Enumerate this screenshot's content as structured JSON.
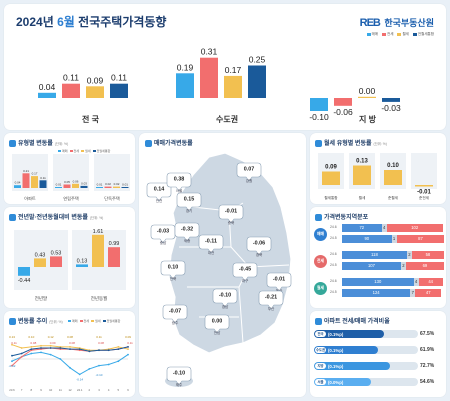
{
  "header": {
    "year": "2024년",
    "month": "6월",
    "title": "전국주택가격동향",
    "logo_mark": "REB",
    "logo_text": "한국부동산원"
  },
  "top": {
    "legend": [
      "매매",
      "전세",
      "월세",
      "전월세통합"
    ],
    "groups": [
      {
        "name": "전 국"
      },
      {
        "name": "수도권"
      },
      {
        "name": "지 방"
      }
    ],
    "colors": [
      "#37a9e8",
      "#f26e6e",
      "#f2c050",
      "#1a5a9a"
    ]
  },
  "type_panel": {
    "title": "유형별 변동률",
    "unit": "(단위: %)",
    "groups": [
      "아파트",
      "연립주택",
      "단독주택"
    ],
    "legend": [
      "매매",
      "전세",
      "월세",
      "전월세통합"
    ],
    "values": [
      [
        "0.04",
        "0.21",
        "0.17",
        "0.11"
      ],
      [
        "0.01",
        "0.05",
        "0.06",
        "0.03"
      ],
      [
        "0.01",
        "0.02",
        "0.02",
        "0.01"
      ]
    ]
  },
  "compare_panel": {
    "title": "전년말·전년동월대비 변동률",
    "unit": "(단위: %)",
    "groups": [
      "전년말",
      "전년동월"
    ],
    "values": [
      [
        "-0.44",
        "0.43",
        "0.53"
      ],
      [
        "0.13",
        "1.61",
        "0.99"
      ]
    ]
  },
  "trend_panel": {
    "title": "변동률 추이",
    "unit": "(단위: %)",
    "legend": [
      "매매",
      "전세",
      "월세",
      "전월세통합"
    ],
    "months": [
      "23.6",
      "7",
      "8",
      "9",
      "10",
      "11",
      "12",
      "24.1",
      "2",
      "3",
      "4",
      "5",
      "6"
    ],
    "labels": {
      "jeonse": [
        "0.11",
        "0.08",
        "0.09",
        "0.08",
        "0.08",
        "0.11"
      ],
      "wolse": [
        "0.13",
        "0.10",
        "0.12",
        "0.08",
        "0.11",
        "0.09"
      ],
      "trade": [
        "-0.02",
        "-0.14",
        "-0.10"
      ]
    }
  },
  "map_panel": {
    "title": "매매가격변동률",
    "regions": [
      {
        "name": "인천",
        "value": "0.14"
      },
      {
        "name": "서울",
        "value": "0.38"
      },
      {
        "name": "경기",
        "value": "0.15"
      },
      {
        "name": "강원",
        "value": "0.07"
      },
      {
        "name": "충북",
        "value": "-0.01"
      },
      {
        "name": "충남",
        "value": "-0.03"
      },
      {
        "name": "세종",
        "value": "-0.32"
      },
      {
        "name": "대전",
        "value": "-0.11"
      },
      {
        "name": "경북",
        "value": "-0.06"
      },
      {
        "name": "전북",
        "value": "0.10"
      },
      {
        "name": "대구",
        "value": "-0.45"
      },
      {
        "name": "울산",
        "value": "-0.01"
      },
      {
        "name": "경남",
        "value": "-0.10"
      },
      {
        "name": "광주",
        "value": "-0.07"
      },
      {
        "name": "부산",
        "value": "-0.21"
      },
      {
        "name": "전남",
        "value": "0.00"
      },
      {
        "name": "제주",
        "value": "-0.10"
      }
    ]
  },
  "wolse_panel": {
    "title": "월세 유형별 변동률",
    "unit": "(단위: %)",
    "categories": [
      "월세통합",
      "월세",
      "준월세",
      "준전세"
    ],
    "values": [
      "0.09",
      "0.13",
      "0.10",
      "-0.01"
    ]
  },
  "dist_panel": {
    "title": "가격변동지역분포",
    "rows": [
      {
        "label": "매매",
        "sub": [
          "24.6",
          "24.5"
        ],
        "a": [
          [
            "72",
            "4",
            "102"
          ],
          [
            "90",
            "1",
            "87"
          ]
        ]
      },
      {
        "label": "전세",
        "sub": [
          "24.6",
          "24.5"
        ],
        "a": [
          [
            "118",
            "2",
            "58"
          ],
          [
            "107",
            "2",
            "69"
          ]
        ]
      },
      {
        "label": "월세",
        "sub": [
          "24.6",
          "24.5"
        ],
        "a": [
          [
            "130",
            "4",
            "44"
          ],
          [
            "124",
            "7",
            "47"
          ]
        ]
      }
    ]
  },
  "ratio_panel": {
    "title": "아파트 전세/매매 가격비율",
    "rows": [
      {
        "tag": "전국",
        "change": "(0.1%p)",
        "value": "67.5%",
        "pct": 67.5
      },
      {
        "tag": "수도권",
        "change": "(0.1%p)",
        "value": "61.9%",
        "pct": 61.9
      },
      {
        "tag": "지방",
        "change": "(0.1%p)",
        "value": "72.7%",
        "pct": 72.7
      },
      {
        "tag": "서울",
        "change": "(0.0%p)",
        "value": "54.6%",
        "pct": 54.6
      }
    ]
  },
  "chart_data": [
    {
      "type": "bar",
      "title": "",
      "categories": [
        "전 국",
        "수도권",
        "지 방"
      ],
      "series": [
        {
          "name": "매매",
          "values": [
            0.04,
            0.19,
            -0.1
          ]
        },
        {
          "name": "전세",
          "values": [
            0.11,
            0.31,
            -0.06
          ]
        },
        {
          "name": "월세",
          "values": [
            0.09,
            0.17,
            0.0
          ]
        },
        {
          "name": "전월세통합",
          "values": [
            0.11,
            0.25,
            -0.03
          ]
        }
      ]
    },
    {
      "type": "bar",
      "title": "유형별 변동률",
      "categories": [
        "아파트",
        "연립주택",
        "단독주택"
      ],
      "series": [
        {
          "name": "매매",
          "values": [
            0.04,
            0.01,
            0.01
          ]
        },
        {
          "name": "전세",
          "values": [
            0.21,
            0.05,
            0.02
          ]
        },
        {
          "name": "월세",
          "values": [
            0.17,
            0.06,
            0.02
          ]
        },
        {
          "name": "전월세통합",
          "values": [
            0.11,
            0.03,
            0.01
          ]
        }
      ]
    },
    {
      "type": "bar",
      "title": "전년말·전년동월대비 변동률",
      "categories": [
        "전년말",
        "전년동월"
      ],
      "series": [
        {
          "values": [
            -0.44,
            0.13
          ]
        },
        {
          "values": [
            0.43,
            1.61
          ]
        },
        {
          "values": [
            0.53,
            0.99
          ]
        }
      ]
    },
    {
      "type": "line",
      "title": "변동률 추이",
      "x": [
        "23.6",
        "7",
        "8",
        "9",
        "10",
        "11",
        "12",
        "24.1",
        "2",
        "3",
        "4",
        "5",
        "6"
      ],
      "series": [
        {
          "name": "매매",
          "values": [
            -0.02,
            0.02,
            0.05,
            0.06,
            0.04,
            0.0,
            -0.08,
            -0.14,
            -0.09,
            -0.06,
            -0.05,
            -0.02,
            0.04
          ]
        },
        {
          "name": "전세",
          "values": [
            -0.06,
            0.02,
            0.08,
            0.09,
            0.1,
            0.09,
            0.09,
            0.08,
            0.07,
            0.08,
            0.08,
            0.09,
            0.11
          ]
        },
        {
          "name": "월세",
          "values": [
            0.13,
            0.1,
            0.11,
            0.12,
            0.12,
            0.11,
            0.11,
            0.1,
            0.08,
            0.08,
            0.09,
            0.11,
            0.09
          ]
        },
        {
          "name": "전월세통합",
          "values": [
            0.03,
            0.05,
            0.09,
            0.1,
            0.1,
            0.1,
            0.09,
            0.09,
            0.07,
            0.08,
            0.08,
            0.09,
            0.11
          ]
        }
      ]
    },
    {
      "type": "bar",
      "title": "월세 유형별 변동률",
      "categories": [
        "월세통합",
        "월세",
        "준월세",
        "준전세"
      ],
      "values": [
        0.09,
        0.13,
        0.1,
        -0.01
      ]
    }
  ]
}
